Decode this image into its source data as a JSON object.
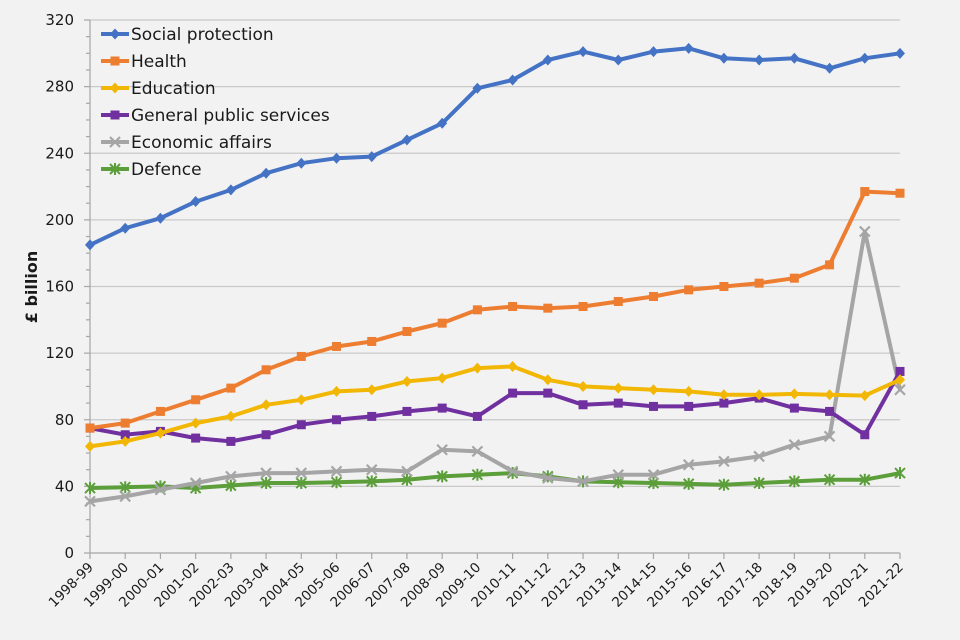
{
  "chart_data": {
    "type": "line",
    "title": "",
    "xlabel": "",
    "ylabel": "£ billion",
    "ylim": [
      0,
      320
    ],
    "yticks": [
      0,
      40,
      80,
      120,
      160,
      200,
      240,
      280,
      320
    ],
    "minor_tick_step": 10,
    "grid": true,
    "legend_position": "top-left",
    "categories": [
      "1998-99",
      "1999-00",
      "2000-01",
      "2001-02",
      "2002-03",
      "2003-04",
      "2004-05",
      "2005-06",
      "2006-07",
      "2007-08",
      "2008-09",
      "2009-10",
      "2010-11",
      "2011-12",
      "2012-13",
      "2013-14",
      "2014-15",
      "2015-16",
      "2016-17",
      "2017-18",
      "2018-19",
      "2019-20",
      "2020-21",
      "2021-22"
    ],
    "series": [
      {
        "name": "Social protection",
        "color": "#4472c4",
        "marker": "diamond",
        "values": [
          185,
          195,
          201,
          211,
          218,
          228,
          234,
          237,
          238,
          248,
          258,
          279,
          284,
          296,
          301,
          296,
          301,
          303,
          297,
          296,
          297,
          291,
          297,
          300
        ]
      },
      {
        "name": "Health",
        "color": "#ed7d31",
        "marker": "square",
        "values": [
          75,
          78,
          85,
          92,
          99,
          110,
          118,
          124,
          127,
          133,
          138,
          146,
          148,
          147,
          148,
          151,
          154,
          158,
          160,
          162,
          165,
          173,
          217,
          216
        ]
      },
      {
        "name": "Education",
        "color": "#f2b705",
        "marker": "diamond",
        "values": [
          64,
          67,
          72,
          78,
          82,
          89,
          92,
          97,
          98,
          103,
          105,
          111,
          112,
          104,
          100,
          99,
          98,
          97,
          95,
          95,
          95.5,
          95,
          94.5,
          104
        ]
      },
      {
        "name": "General public services",
        "color": "#7030a0",
        "marker": "square",
        "values": [
          75,
          71,
          73,
          69,
          67,
          71,
          77,
          80,
          82,
          85,
          87,
          82,
          96,
          96,
          89,
          90,
          88,
          88,
          90,
          93,
          87,
          85,
          71,
          109
        ]
      },
      {
        "name": "Economic affairs",
        "color": "#a5a5a5",
        "marker": "x",
        "values": [
          31,
          34,
          38,
          42,
          46,
          48,
          48,
          49,
          50,
          49,
          62,
          61,
          49,
          45,
          43,
          47,
          47,
          53,
          55,
          58,
          65,
          70,
          193,
          98
        ]
      },
      {
        "name": "Defence",
        "color": "#5b9e3a",
        "marker": "star",
        "values": [
          39,
          39.5,
          40,
          39,
          40.5,
          42,
          42,
          42.5,
          43,
          44,
          46,
          47,
          48,
          46,
          43,
          42.5,
          42,
          41.5,
          41,
          42,
          43,
          44,
          44,
          48
        ]
      }
    ]
  }
}
